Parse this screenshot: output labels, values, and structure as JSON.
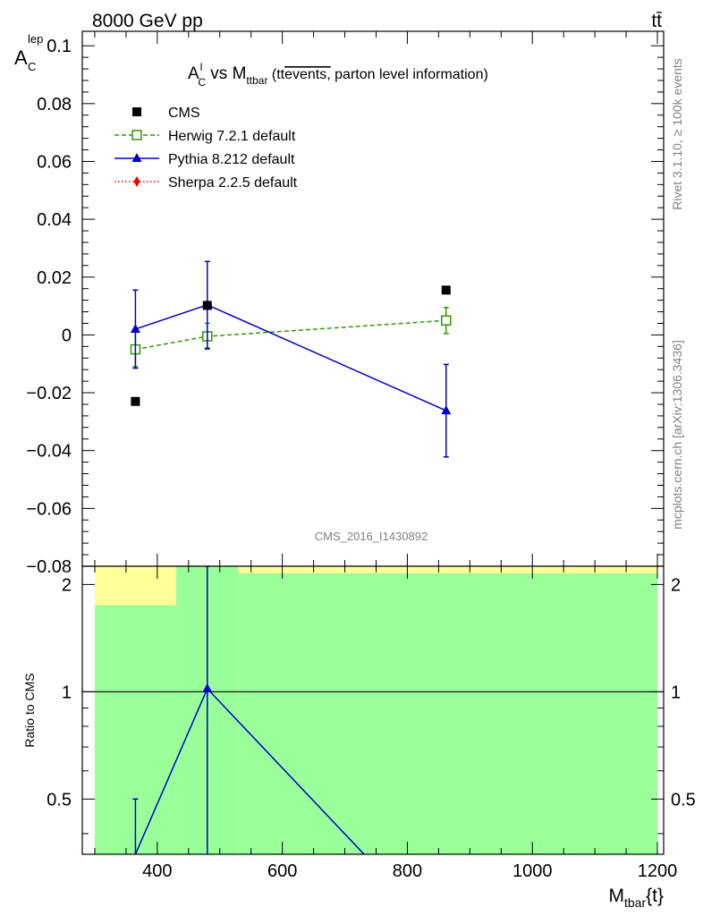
{
  "header": {
    "energy_label": "8000 GeV pp",
    "process_label": "tt̄"
  },
  "side_labels": {
    "rivet": "Rivet 3.1.10, ≥ 100k events",
    "mcplots": "mcplots.cern.ch [arXiv:1306.3436]"
  },
  "watermark": "CMS_2016_I1430892",
  "chart_data": [
    {
      "type": "scatter",
      "title": {
        "main": "A",
        "main_sup": "l",
        "main_sub": "C",
        "vs": " vs M",
        "vs_sub": "ttbar",
        "paren_open": " (tt",
        "overlined": "events,",
        "rest": " parton level information)"
      },
      "ylabel": {
        "main": "A",
        "sub": "C",
        "sup": "lep"
      },
      "ylim": [
        -0.08,
        0.105
      ],
      "xlim": [
        280,
        1210
      ],
      "yticks": [
        -0.08,
        -0.06,
        -0.04,
        -0.02,
        0,
        0.02,
        0.04,
        0.06,
        0.08,
        0.1
      ],
      "ytick_labels": [
        "−0.08",
        "−0.06",
        "−0.04",
        "−0.02",
        "0",
        "0.02",
        "0.04",
        "0.06",
        "0.08",
        "0.1"
      ],
      "legend": {
        "placement": "top-left",
        "entries": [
          {
            "label": "CMS",
            "color": "#000000",
            "marker": "filled-square",
            "line": "none"
          },
          {
            "label": "Herwig 7.2.1 default",
            "color": "#339900",
            "marker": "open-square",
            "line": "dashed"
          },
          {
            "label": "Pythia 8.212 default",
            "color": "#0000cc",
            "marker": "filled-triangle",
            "line": "solid"
          },
          {
            "label": "Sherpa 2.2.5 default",
            "color": "#ee0000",
            "marker": "filled-diamond",
            "line": "dotted"
          }
        ]
      },
      "series": [
        {
          "name": "CMS",
          "color": "#000000",
          "points": [
            {
              "x": 365,
              "y": -0.023
            },
            {
              "x": 480,
              "y": 0.0102
            },
            {
              "x": 862,
              "y": 0.0155
            }
          ]
        },
        {
          "name": "Herwig 7.2.1 default",
          "color": "#339900",
          "points": [
            {
              "x": 365,
              "y": -0.005,
              "err": 0.006
            },
            {
              "x": 480,
              "y": -0.0005,
              "err": 0.0045
            },
            {
              "x": 862,
              "y": 0.005,
              "err": 0.0045
            }
          ]
        },
        {
          "name": "Pythia 8.212 default",
          "color": "#0000cc",
          "points": [
            {
              "x": 365,
              "y": 0.002,
              "err": 0.0135
            },
            {
              "x": 480,
              "y": 0.0104,
              "err": 0.015
            },
            {
              "x": 862,
              "y": -0.0262,
              "err": 0.016
            }
          ]
        }
      ]
    },
    {
      "type": "line",
      "ylabel": "Ratio to CMS",
      "xlabel": {
        "main": "M",
        "sub": "tbar",
        "rest": "{t}"
      },
      "xlim": [
        280,
        1210
      ],
      "ylim": [
        0.35,
        2.25
      ],
      "y_scale": "log",
      "xticks": [
        400,
        600,
        800,
        1000,
        1200
      ],
      "yticks": [
        0.5,
        1,
        2
      ],
      "ytick_labels": [
        "0.5",
        "1",
        "2"
      ],
      "bands": {
        "outer_color": "#ffff99",
        "inner_color": "#99ff99",
        "bins": [
          {
            "xlo": 300,
            "xhi": 430,
            "green_hi": 1.75,
            "yellow_hi": 2.25
          },
          {
            "xlo": 430,
            "xhi": 530,
            "green_hi": 2.25,
            "yellow_hi": 2.25
          },
          {
            "xlo": 530,
            "xhi": 1200,
            "green_hi": 2.15,
            "yellow_hi": 2.25
          }
        ]
      },
      "series": [
        {
          "name": "Pythia 8.212 default",
          "color": "#0000cc",
          "points": [
            {
              "x": 365,
              "y": 0.35,
              "err_hi": 0.5
            },
            {
              "x": 480,
              "y": 1.02,
              "err_hi": 2.25
            },
            {
              "x": 862,
              "y": 0.2
            }
          ]
        }
      ]
    }
  ]
}
